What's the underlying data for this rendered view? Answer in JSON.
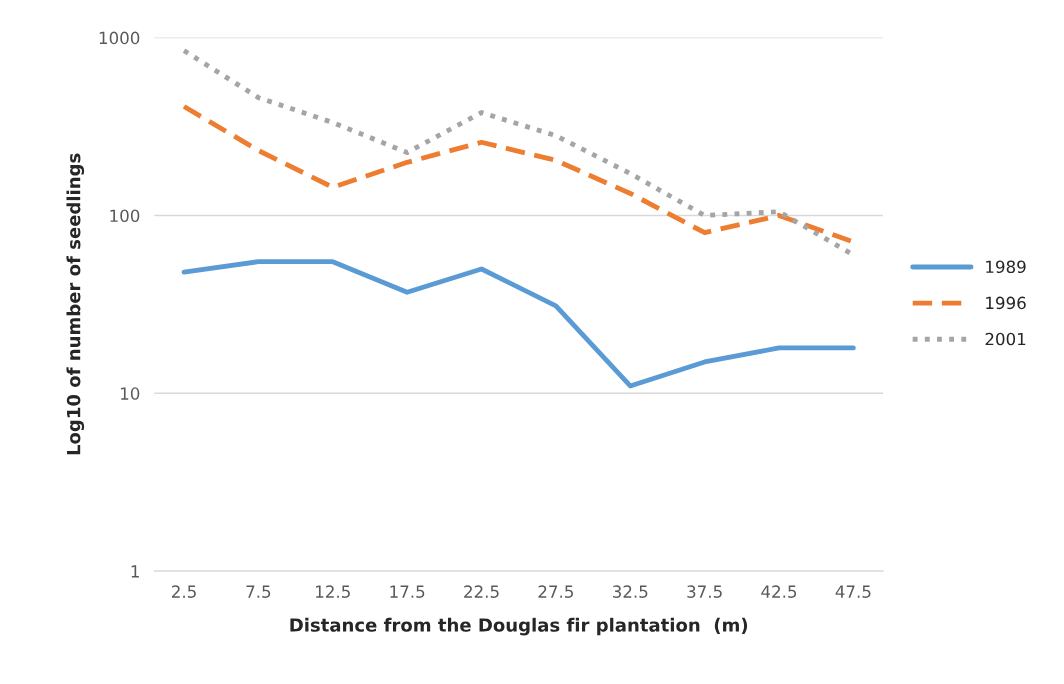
{
  "chart_data": {
    "type": "line",
    "xlabel": "Distance from the Douglas fir plantation  (m)",
    "ylabel": "Log10 of number of seedlings",
    "categories": [
      "2.5",
      "7.5",
      "12.5",
      "17.5",
      "22.5",
      "27.5",
      "32.5",
      "37.5",
      "42.5",
      "47.5"
    ],
    "series": [
      {
        "name": "1989",
        "color": "#5b9bd5",
        "line_style": "solid",
        "values": [
          48,
          55,
          55,
          37,
          50,
          31,
          11,
          15,
          18,
          18
        ]
      },
      {
        "name": "1996",
        "color": "#ed7d31",
        "line_style": "dashed",
        "values": [
          410,
          232,
          144,
          199,
          258,
          204,
          133,
          80,
          100,
          71
        ]
      },
      {
        "name": "2001",
        "color": "#a5a5a5",
        "line_style": "dotted",
        "values": [
          845,
          460,
          333,
          226,
          379,
          281,
          172,
          100,
          105,
          60
        ]
      }
    ],
    "log": "y",
    "ylim": [
      1,
      1000
    ],
    "yticks": [
      1,
      10,
      100,
      1000
    ],
    "grid": "y",
    "legend": "right",
    "marker": "none"
  }
}
